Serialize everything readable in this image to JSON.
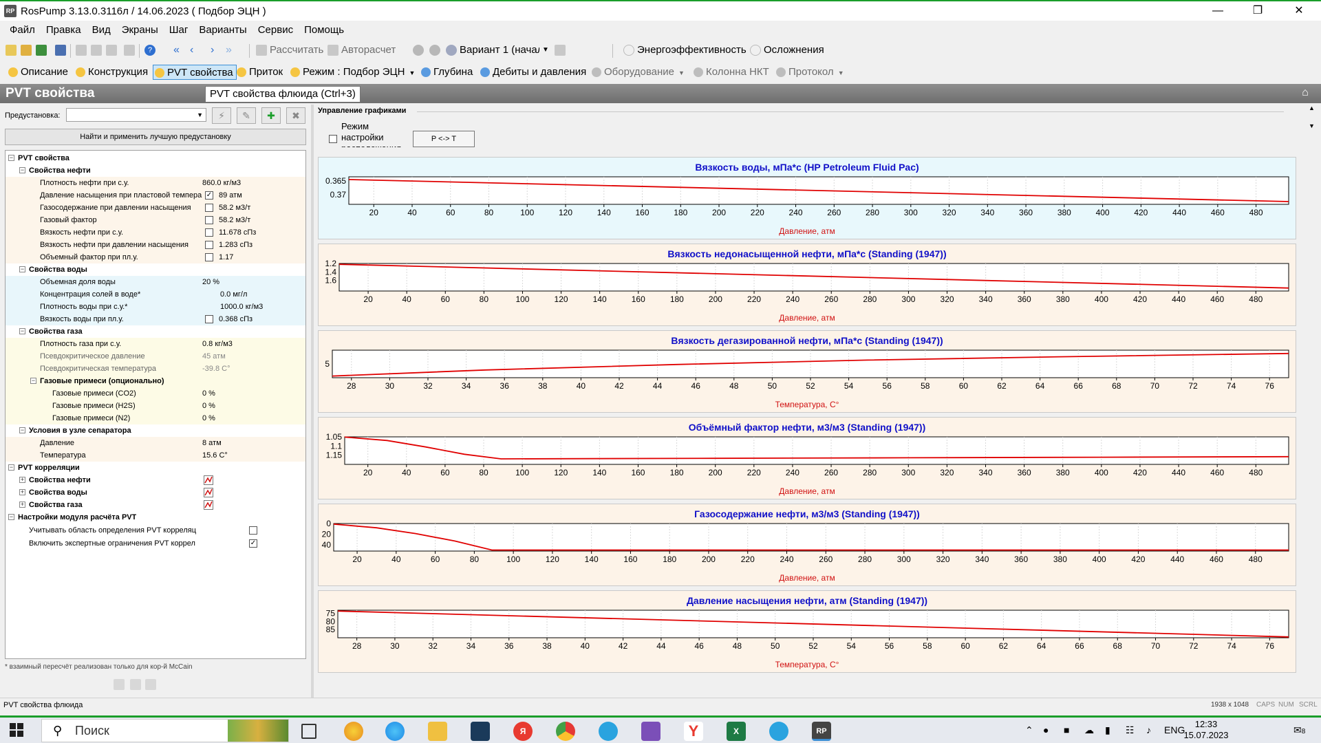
{
  "window": {
    "title": "RosPump 3.13.0.3116л / 14.06.2023 ( Подбор ЭЦН )",
    "app_icon_text": "RP"
  },
  "menu": [
    "Файл",
    "Правка",
    "Вид",
    "Экраны",
    "Шаг",
    "Варианты",
    "Сервис",
    "Помощь"
  ],
  "toolbar": {
    "calculate": "Рассчитать",
    "autocalc": "Авторасчет",
    "variant": "Вариант 1 (начал",
    "energy": "Энергоэффективность",
    "complications": "Осложнения"
  },
  "tabs": [
    {
      "label": "Описание",
      "color": "#f5c542"
    },
    {
      "label": "Конструкция",
      "color": "#f5c542"
    },
    {
      "label": "PVT свойства",
      "color": "#f5c542",
      "active": true
    },
    {
      "label": "Приток",
      "color": "#f5c542"
    },
    {
      "label": "Режим : Подбор ЭЦН",
      "color": "#f5c542"
    },
    {
      "label": "Глубина",
      "color": "#5a9be0"
    },
    {
      "label": "Дебиты и давления",
      "color": "#5a9be0"
    },
    {
      "label": "Оборудование",
      "color": "#bdbdbd"
    },
    {
      "label": "Колонна НКТ",
      "color": "#bdbdbd"
    },
    {
      "label": "Протокол",
      "color": "#bdbdbd"
    }
  ],
  "section": {
    "title": "PVT свойства",
    "tooltip": "PVT свойства флюида (Ctrl+3)"
  },
  "left": {
    "preset_label": "Предустановка:",
    "find_button": "Найти и применить лучшую предустановку",
    "footnote": "* взаимный пересчёт реализован только для кор-й McCain"
  },
  "tree": {
    "pvt": "PVT свойства",
    "oil": {
      "title": "Свойства нефти",
      "rows": [
        {
          "label": "Плотность нефти при с.у.",
          "value": "860.0 кг/м3",
          "cb": null
        },
        {
          "label": "Давление насыщения при пластовой темпера",
          "value": "89 атм",
          "cb": true
        },
        {
          "label": "Газосодержание при давлении насыщения",
          "value": "58.2 м3/т",
          "cb": false
        },
        {
          "label": "Газовый фактор",
          "value": "58.2 м3/т",
          "cb": false
        },
        {
          "label": "Вязкость нефти при с.у.",
          "value": "11.678 сПз",
          "cb": false
        },
        {
          "label": "Вязкость нефти при давлении насыщения",
          "value": "1.283 сПз",
          "cb": false
        },
        {
          "label": "Объемный фактор при пл.у.",
          "value": "1.17",
          "cb": false
        }
      ]
    },
    "water": {
      "title": "Свойства воды",
      "rows": [
        {
          "label": "Объемная доля воды",
          "value": "20 %",
          "cb": null
        },
        {
          "label": "Концентрация солей в воде*",
          "value": "0.0 мг/л",
          "cb": null,
          "indent": true
        },
        {
          "label": "Плотность воды при с.у.*",
          "value": "1000.0 кг/м3",
          "cb": null,
          "indent": true
        },
        {
          "label": "Вязкость воды при пл.у.",
          "value": "0.368 сПз",
          "cb": false
        }
      ]
    },
    "gas": {
      "title": "Свойства газа",
      "rows": [
        {
          "label": "Плотность газа при с.у.",
          "value": "0.8 кг/м3",
          "cb": null
        },
        {
          "label": "Псевдокритическое давление",
          "value": "45 атм",
          "cb": null,
          "gray": true
        },
        {
          "label": "Псевдокритическая температура",
          "value": "-39.8 С°",
          "cb": null,
          "gray": true
        }
      ],
      "impurities": {
        "title": "Газовые примеси (опционально)",
        "rows": [
          {
            "label": "Газовые примеси (CO2)",
            "value": "0 %"
          },
          {
            "label": "Газовые примеси (H2S)",
            "value": "0 %"
          },
          {
            "label": "Газовые примеси (N2)",
            "value": "0 %"
          }
        ]
      }
    },
    "separator": {
      "title": "Условия в узле сепаратора",
      "rows": [
        {
          "label": "Давление",
          "value": "8 атм"
        },
        {
          "label": "Температура",
          "value": "15.6 С°"
        }
      ]
    },
    "correlations": {
      "title": "PVT корреляции",
      "rows": [
        "Свойства нефти",
        "Свойства воды",
        "Свойства газа"
      ]
    },
    "module": {
      "title": "Настройки модуля расчёта PVT",
      "rows": [
        {
          "label": "Учитывать область определения PVT корреляц",
          "cb": false
        },
        {
          "label": "Включить экспертные ограничения PVT коррел",
          "cb": true
        }
      ]
    }
  },
  "graph_control": {
    "title": "Управление графиками",
    "mode_text": "Режим настройки расположения",
    "pt_button": "P <-> T"
  },
  "chart_data": [
    {
      "type": "line",
      "title": "Вязкость воды, мПа*с (HP Petroleum Fluid Pac)",
      "xlabel": "Давление, атм",
      "x_ticks": [
        20,
        40,
        60,
        80,
        100,
        120,
        140,
        160,
        180,
        200,
        220,
        240,
        260,
        280,
        300,
        320,
        340,
        360,
        380,
        400,
        420,
        440,
        460,
        480
      ],
      "y_ticks": [
        "0.365",
        "0.37"
      ],
      "xlim": [
        7,
        497
      ],
      "ylim": [
        0.3635,
        0.3735
      ],
      "y_inverted": true,
      "x": [
        7,
        497
      ],
      "y": [
        0.3645,
        0.3725
      ],
      "background": "#e8f8fc"
    },
    {
      "type": "line",
      "title": "Вязкость недонасыщенной нефти, мПа*с (Standing (1947))",
      "xlabel": "Давление, атм",
      "x_ticks": [
        20,
        40,
        60,
        80,
        100,
        120,
        140,
        160,
        180,
        200,
        220,
        240,
        260,
        280,
        300,
        320,
        340,
        360,
        380,
        400,
        420,
        440,
        460,
        480
      ],
      "y_ticks": [
        "1.2",
        "1.4",
        "1.6"
      ],
      "xlim": [
        5,
        497
      ],
      "ylim": [
        1.2,
        1.85
      ],
      "y_inverted": true,
      "x": [
        5,
        497
      ],
      "y": [
        1.22,
        1.78
      ],
      "background": "#fdf3e8"
    },
    {
      "type": "line",
      "title": "Вязкость дегазированной нефти, мПа*с (Standing (1947))",
      "xlabel": "Температура, С°",
      "x_ticks": [
        28,
        30,
        32,
        34,
        36,
        38,
        40,
        42,
        44,
        46,
        48,
        50,
        52,
        54,
        56,
        58,
        60,
        62,
        64,
        66,
        68,
        70,
        72,
        74,
        76
      ],
      "y_ticks": [
        "5"
      ],
      "xlim": [
        27,
        77
      ],
      "ylim": [
        0,
        10
      ],
      "y_inverted": false,
      "x": [
        27,
        35,
        45,
        55,
        65,
        77
      ],
      "y": [
        0.6,
        2.8,
        4.8,
        6.4,
        7.6,
        8.8
      ],
      "background": "#fdf3e8"
    },
    {
      "type": "line",
      "title": "Объёмный фактор нефти, м3/м3 (Standing (1947))",
      "xlabel": "Давление, атм",
      "x_ticks": [
        20,
        40,
        60,
        80,
        100,
        120,
        140,
        160,
        180,
        200,
        220,
        240,
        260,
        280,
        300,
        320,
        340,
        360,
        380,
        400,
        420,
        440,
        460,
        480
      ],
      "y_ticks": [
        "1.05",
        "1.1",
        "1.15"
      ],
      "xlim": [
        8,
        497
      ],
      "ylim": [
        1.05,
        1.2
      ],
      "y_inverted": true,
      "x": [
        8,
        30,
        50,
        70,
        89,
        200,
        300,
        400,
        497
      ],
      "y": [
        1.051,
        1.07,
        1.105,
        1.145,
        1.17,
        1.167,
        1.164,
        1.161,
        1.158
      ],
      "background": "#fdf3e8"
    },
    {
      "type": "line",
      "title": "Газосодержание нефти, м3/м3 (Standing (1947))",
      "xlabel": "Давление, атм",
      "x_ticks": [
        20,
        40,
        60,
        80,
        100,
        120,
        140,
        160,
        180,
        200,
        220,
        240,
        260,
        280,
        300,
        320,
        340,
        360,
        380,
        400,
        420,
        440,
        460,
        480
      ],
      "y_ticks": [
        "0",
        "20",
        "40"
      ],
      "xlim": [
        8,
        497
      ],
      "ylim": [
        0,
        52
      ],
      "y_inverted": true,
      "x": [
        8,
        30,
        50,
        70,
        89,
        497
      ],
      "y": [
        1,
        8,
        19,
        33,
        50,
        50
      ],
      "background": "#fdf3e8"
    },
    {
      "type": "line",
      "title": "Давление насыщения нефти, атм (Standing (1947))",
      "xlabel": "Температура, С°",
      "x_ticks": [
        28,
        30,
        32,
        34,
        36,
        38,
        40,
        42,
        44,
        46,
        48,
        50,
        52,
        54,
        56,
        58,
        60,
        62,
        64,
        66,
        68,
        70,
        72,
        74,
        76
      ],
      "y_ticks": [
        "75",
        "80",
        "85"
      ],
      "xlim": [
        27,
        77
      ],
      "ylim": [
        73,
        90
      ],
      "y_inverted": true,
      "x": [
        27,
        77
      ],
      "y": [
        73.5,
        89.5
      ],
      "background": "#fdf3e8"
    }
  ],
  "status": {
    "text": "PVT свойства флюида",
    "resolution": "1938 x 1048",
    "caps": "CAPS",
    "num": "NUM",
    "scrl": "SCRL"
  },
  "taskbar": {
    "search": "Поиск",
    "lang": "ENG",
    "time": "12:33",
    "date": "15.07.2023",
    "notif_count": "8"
  }
}
